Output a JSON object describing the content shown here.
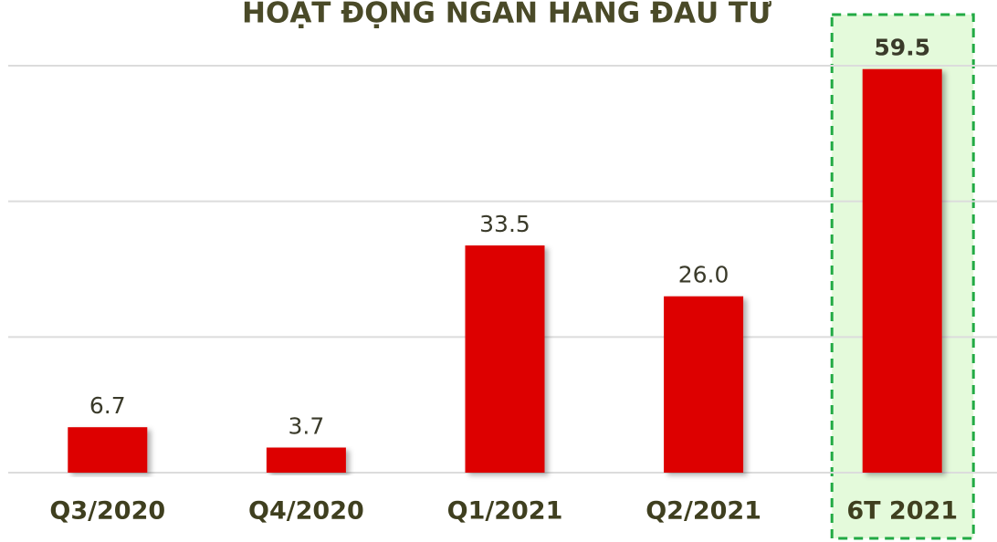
{
  "chart_data": {
    "type": "bar",
    "title": "HOẠT ĐỘNG NGÂN HÀNG ĐẦU TƯ",
    "categories": [
      "Q3/2020",
      "Q4/2020",
      "Q1/2021",
      "Q2/2021",
      "6T 2021"
    ],
    "values": [
      6.7,
      3.7,
      33.5,
      26.0,
      59.5
    ],
    "value_labels": [
      "6.7",
      "3.7",
      "33.5",
      "26.0",
      "59.5"
    ],
    "color": "#dd0000",
    "highlight_index": 4,
    "highlight_color": "#22aa44",
    "ylim": [
      0,
      60
    ],
    "yticks": [
      0,
      20,
      40,
      60
    ],
    "grid": true
  }
}
